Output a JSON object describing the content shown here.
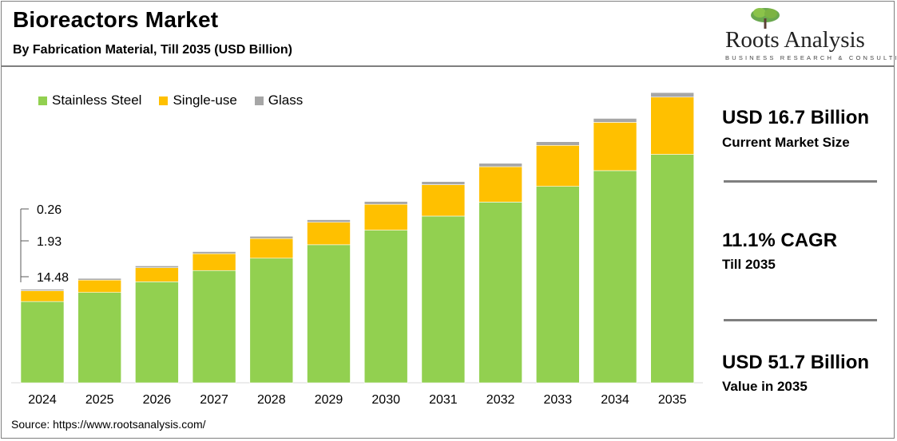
{
  "header": {
    "title": "Bioreactors Market",
    "subtitle": "By Fabrication Material, Till 2035 (USD Billion)"
  },
  "logo": {
    "name": "Roots Analysis",
    "tagline": "BUSINESS RESEARCH & CONSULTING"
  },
  "kpis": [
    {
      "value": "USD 16.7 Billion",
      "label": "Current Market Size"
    },
    {
      "value": "11.1% CAGR",
      "label": "Till 2035"
    },
    {
      "value": "USD 51.7 Billion",
      "label": "Value in 2035"
    }
  ],
  "source": "Source: https://www.rootsanalysis.com/",
  "colors": {
    "stainless_steel": "#92d050",
    "single_use": "#ffc000",
    "glass": "#a6a6a6"
  },
  "chart_data": {
    "type": "bar",
    "stacked": true,
    "categories": [
      "2024",
      "2025",
      "2026",
      "2027",
      "2028",
      "2029",
      "2030",
      "2031",
      "2032",
      "2033",
      "2034",
      "2035"
    ],
    "series": [
      {
        "name": "Stainless Steel",
        "values": [
          14.48,
          16.1,
          18.0,
          20.0,
          22.2,
          24.6,
          27.2,
          29.7,
          32.2,
          35.0,
          37.8,
          40.7
        ]
      },
      {
        "name": "Single-use",
        "values": [
          1.93,
          2.2,
          2.5,
          3.0,
          3.5,
          4.0,
          4.6,
          5.6,
          6.3,
          7.3,
          8.6,
          10.2
        ]
      },
      {
        "name": "Glass",
        "values": [
          0.26,
          0.3,
          0.33,
          0.37,
          0.4,
          0.45,
          0.5,
          0.55,
          0.6,
          0.65,
          0.7,
          0.8
        ]
      }
    ],
    "data_labels_first_bar": [
      "0.26",
      "1.93",
      "14.48"
    ],
    "legend_position": "top-left",
    "grid": false,
    "ylim": [
      0,
      52
    ]
  }
}
